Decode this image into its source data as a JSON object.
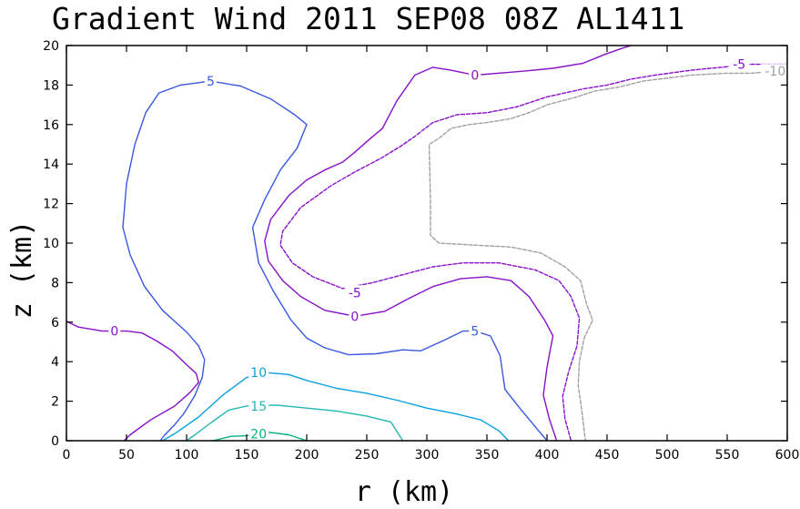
{
  "chart_data": {
    "type": "contour",
    "title": "Gradient Wind 2011 SEP08 08Z  AL1411",
    "xlabel": "r (km)",
    "ylabel": "z (km)",
    "xlim": [
      0,
      600
    ],
    "ylim": [
      0,
      20
    ],
    "x_ticks": [
      "0",
      "50",
      "100",
      "150",
      "200",
      "250",
      "300",
      "350",
      "400",
      "450",
      "500",
      "550",
      "600"
    ],
    "y_ticks": [
      "0",
      "2",
      "4",
      "6",
      "8",
      "10",
      "12",
      "14",
      "16",
      "18",
      "20"
    ],
    "grid": false,
    "series": [
      {
        "name": "20",
        "label": "20",
        "color": "#00b088",
        "dashed": false,
        "points": [
          [
            122,
            0
          ],
          [
            137,
            0.22
          ],
          [
            150,
            0.25
          ],
          [
            165,
            0.45
          ],
          [
            185,
            0.3
          ],
          [
            200,
            0
          ]
        ],
        "label_at": [
          160,
          0.35
        ]
      },
      {
        "name": "15",
        "label": "15",
        "color": "#20b8b0",
        "dashed": false,
        "points": [
          [
            100,
            0
          ],
          [
            107,
            0.3
          ],
          [
            120,
            0.9
          ],
          [
            135,
            1.55
          ],
          [
            150,
            1.75
          ],
          [
            175,
            1.8
          ],
          [
            200,
            1.65
          ],
          [
            225,
            1.5
          ],
          [
            250,
            1.25
          ],
          [
            270,
            0.95
          ],
          [
            280,
            0
          ]
        ],
        "label_at": [
          160,
          1.75
        ]
      },
      {
        "name": "10",
        "label": "10",
        "color": "#0aa0e0",
        "dashed": false,
        "points": [
          [
            80,
            0
          ],
          [
            90,
            0.35
          ],
          [
            110,
            1.2
          ],
          [
            130,
            2.3
          ],
          [
            150,
            3.2
          ],
          [
            165,
            3.45
          ],
          [
            185,
            3.35
          ],
          [
            200,
            3.05
          ],
          [
            225,
            2.65
          ],
          [
            250,
            2.4
          ],
          [
            275,
            2.05
          ],
          [
            300,
            1.65
          ],
          [
            325,
            1.35
          ],
          [
            345,
            1.05
          ],
          [
            360,
            0.5
          ],
          [
            368,
            0
          ]
        ],
        "label_at": [
          160,
          3.45
        ]
      },
      {
        "name": "5",
        "label": "5",
        "color": "#3858e0",
        "dashed": false,
        "points": [
          [
            78,
            0
          ],
          [
            82,
            0.3
          ],
          [
            90,
            0.8
          ],
          [
            98,
            1.4
          ],
          [
            107,
            2.3
          ],
          [
            113,
            3.2
          ],
          [
            115,
            4.1
          ],
          [
            110,
            4.8
          ],
          [
            100,
            5.5
          ],
          [
            80,
            6.6
          ],
          [
            65,
            7.8
          ],
          [
            53,
            9.4
          ],
          [
            47,
            10.8
          ],
          [
            50,
            13
          ],
          [
            57,
            15
          ],
          [
            66,
            16.6
          ],
          [
            77,
            17.6
          ],
          [
            95,
            18
          ],
          [
            120,
            18.2
          ],
          [
            145,
            17.95
          ],
          [
            170,
            17.3
          ],
          [
            190,
            16.5
          ],
          [
            200,
            16
          ],
          [
            192,
            14.8
          ],
          [
            178,
            13.7
          ],
          [
            165,
            12.2
          ],
          [
            155,
            10.8
          ],
          [
            160,
            9
          ],
          [
            172,
            7.6
          ],
          [
            187,
            6.1
          ],
          [
            200,
            5.2
          ],
          [
            215,
            4.7
          ],
          [
            235,
            4.35
          ],
          [
            258,
            4.4
          ],
          [
            280,
            4.6
          ],
          [
            295,
            4.55
          ],
          [
            315,
            5.1
          ],
          [
            330,
            5.55
          ],
          [
            340,
            5.55
          ],
          [
            353,
            5.3
          ],
          [
            361,
            4.3
          ],
          [
            365,
            2.6
          ],
          [
            378,
            1.6
          ],
          [
            393,
            0.5
          ],
          [
            400,
            0
          ]
        ],
        "label_at": [
          340,
          5.55
        ]
      },
      {
        "name": "0 (lower-left)",
        "label": "0",
        "color": "#8810c8",
        "dashed": false,
        "points": [
          [
            0,
            6.05
          ],
          [
            10,
            5.75
          ],
          [
            30,
            5.55
          ],
          [
            50,
            5.55
          ],
          [
            63,
            5.45
          ],
          [
            75,
            5.05
          ],
          [
            88,
            4.55
          ],
          [
            100,
            3.85
          ],
          [
            108,
            3.4
          ],
          [
            110,
            2.95
          ],
          [
            103,
            2.45
          ],
          [
            90,
            1.75
          ],
          [
            70,
            1.05
          ],
          [
            53,
            0.3
          ],
          [
            48,
            0
          ]
        ],
        "label_at": [
          40,
          5.55
        ]
      },
      {
        "name": "0",
        "label": "0",
        "color": "#8810c8",
        "dashed": false,
        "points": [
          [
            470,
            20
          ],
          [
            462,
            19.85
          ],
          [
            448,
            19.55
          ],
          [
            430,
            19.1
          ],
          [
            405,
            18.85
          ],
          [
            380,
            18.7
          ],
          [
            340,
            18.5
          ],
          [
            320,
            18.75
          ],
          [
            305,
            18.9
          ],
          [
            290,
            18.5
          ],
          [
            275,
            17.2
          ],
          [
            263,
            15.8
          ],
          [
            255,
            15.4
          ],
          [
            240,
            14.6
          ],
          [
            230,
            14.1
          ],
          [
            215,
            13.7
          ],
          [
            200,
            13.2
          ],
          [
            185,
            12.4
          ],
          [
            170,
            11.2
          ],
          [
            165,
            10.1
          ],
          [
            168,
            9.1
          ],
          [
            180,
            8.1
          ],
          [
            195,
            7.3
          ],
          [
            215,
            6.6
          ],
          [
            240,
            6.3
          ],
          [
            265,
            6.55
          ],
          [
            285,
            7.2
          ],
          [
            305,
            7.8
          ],
          [
            328,
            8.2
          ],
          [
            350,
            8.3
          ],
          [
            370,
            8.1
          ],
          [
            385,
            7.3
          ],
          [
            398,
            6.1
          ],
          [
            405,
            5.3
          ],
          [
            403,
            4.7
          ],
          [
            400,
            3.7
          ],
          [
            397,
            2.3
          ],
          [
            402,
            1.1
          ],
          [
            408,
            0
          ]
        ],
        "label_at": [
          240,
          6.3
        ]
      },
      {
        "name": "-5",
        "label": "-5",
        "color": "#8810c8",
        "dashed": true,
        "points": [
          [
            600,
            19.05
          ],
          [
            570,
            19.05
          ],
          [
            545,
            18.9
          ],
          [
            520,
            18.75
          ],
          [
            490,
            18.5
          ],
          [
            470,
            18.3
          ],
          [
            450,
            18
          ],
          [
            430,
            17.8
          ],
          [
            400,
            17.4
          ],
          [
            375,
            16.9
          ],
          [
            350,
            16.6
          ],
          [
            325,
            16.5
          ],
          [
            305,
            16.1
          ],
          [
            290,
            15.4
          ],
          [
            278,
            14.9
          ],
          [
            262,
            14.3
          ],
          [
            240,
            13.6
          ],
          [
            220,
            12.9
          ],
          [
            195,
            11.8
          ],
          [
            180,
            10.6
          ],
          [
            178,
            9.9
          ],
          [
            188,
            9
          ],
          [
            205,
            8.3
          ],
          [
            230,
            7.7
          ],
          [
            255,
            8
          ],
          [
            280,
            8.4
          ],
          [
            305,
            8.8
          ],
          [
            330,
            9
          ],
          [
            360,
            9
          ],
          [
            390,
            8.65
          ],
          [
            410,
            8.1
          ],
          [
            420,
            7.3
          ],
          [
            427,
            6.2
          ],
          [
            425,
            4.8
          ],
          [
            418,
            3.5
          ],
          [
            413,
            2.25
          ],
          [
            415,
            1.1
          ],
          [
            420,
            0
          ]
        ],
        "label_at": [
          240,
          7.5
        ]
      },
      {
        "name": "-10",
        "label": "-10",
        "color": "#a0a0a0",
        "dashed": true,
        "points": [
          [
            600,
            18.75
          ],
          [
            570,
            18.6
          ],
          [
            550,
            18.6
          ],
          [
            520,
            18.5
          ],
          [
            480,
            18.2
          ],
          [
            460,
            17.9
          ],
          [
            440,
            17.7
          ],
          [
            425,
            17.4
          ],
          [
            400,
            17
          ],
          [
            385,
            16.6
          ],
          [
            370,
            16.3
          ],
          [
            350,
            16.1
          ],
          [
            335,
            16
          ],
          [
            320,
            15.8
          ],
          [
            310,
            15.3
          ],
          [
            302,
            15
          ],
          [
            303,
            12
          ],
          [
            303,
            10.4
          ],
          [
            310,
            10
          ],
          [
            340,
            9.9
          ],
          [
            370,
            9.8
          ],
          [
            395,
            9.5
          ],
          [
            415,
            8.8
          ],
          [
            428,
            8.1
          ],
          [
            433,
            6.9
          ],
          [
            438,
            6.1
          ],
          [
            431,
            5.2
          ],
          [
            427,
            4
          ],
          [
            426,
            2.8
          ],
          [
            429,
            1.5
          ],
          [
            432,
            0
          ]
        ],
        "label_at": [
          590,
          18.7
        ]
      }
    ],
    "annotations": [
      {
        "text": "-5",
        "at": [
          560,
          19.05
        ],
        "color": "#8810c8"
      },
      {
        "text": "0",
        "at": [
          340,
          18.5
        ],
        "color": "#8810c8"
      },
      {
        "text": "5",
        "at": [
          120,
          18.2
        ],
        "color": "#3858e0"
      }
    ]
  }
}
